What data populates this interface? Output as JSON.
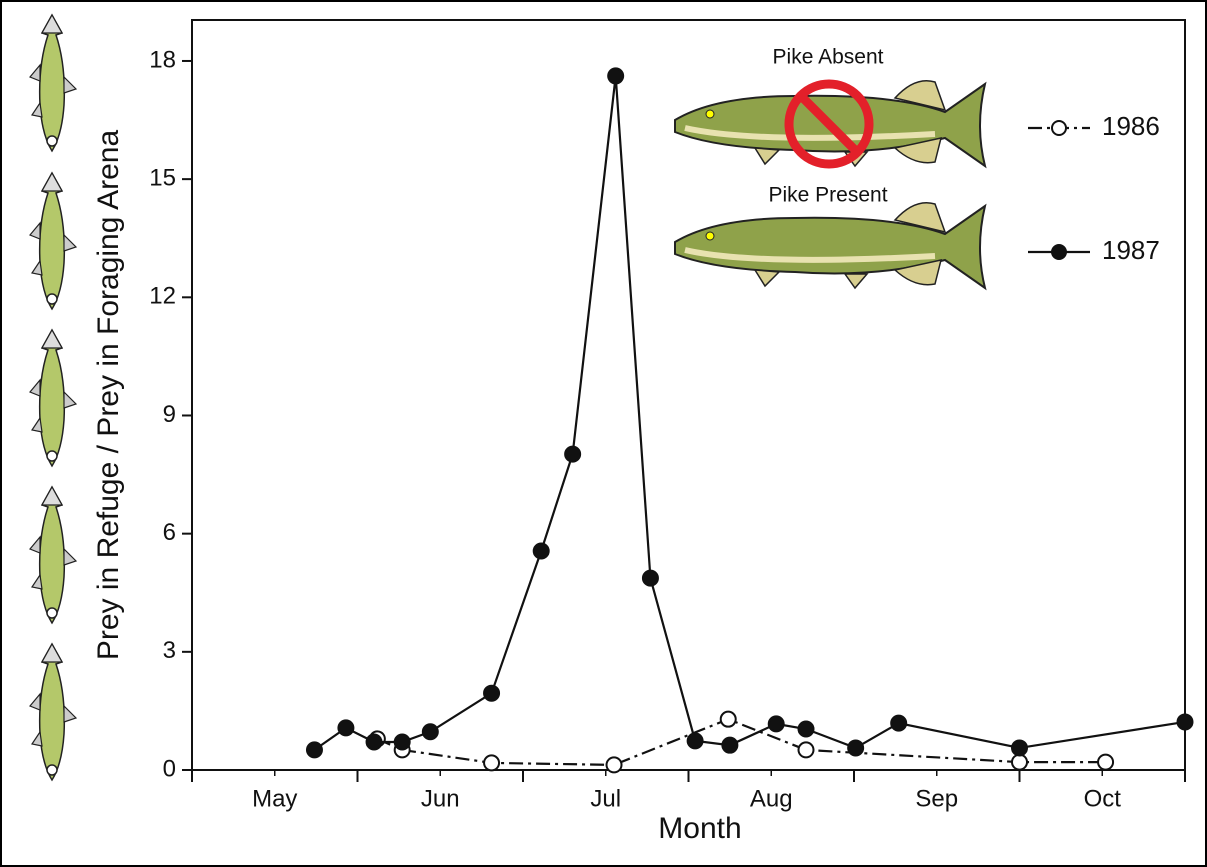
{
  "chart_data": {
    "type": "line",
    "x_label": "Month",
    "y_label": "Prey in Refuge / Prey in Foraging Arena",
    "legend_notes": [
      "Pike Absent",
      "Pike Present"
    ],
    "xlim": [
      0,
      6
    ],
    "xticks": [
      {
        "value": 0.5,
        "label": "May"
      },
      {
        "value": 1.5,
        "label": "Jun"
      },
      {
        "value": 2.5,
        "label": "Jul"
      },
      {
        "value": 3.5,
        "label": "Aug"
      },
      {
        "value": 4.5,
        "label": "Sep"
      },
      {
        "value": 5.5,
        "label": "Oct"
      }
    ],
    "ylim": [
      0,
      19.04
    ],
    "yticks": [
      0,
      3,
      6,
      9,
      12,
      15,
      18
    ],
    "series": [
      {
        "name": "1986",
        "color": "#111111",
        "line_style": "dashdot",
        "marker_fill": "#ffffff",
        "x": [
          1.12,
          1.27,
          1.81,
          2.55,
          3.24,
          3.71,
          5.0,
          5.52
        ],
        "values": [
          0.79,
          0.51,
          0.18,
          0.13,
          1.29,
          0.51,
          0.2,
          0.2
        ]
      },
      {
        "name": "1987",
        "color": "#111111",
        "line_style": "solid",
        "marker_fill": "#111111",
        "x": [
          0.74,
          0.93,
          1.1,
          1.27,
          1.44,
          1.81,
          2.11,
          2.3,
          2.56,
          2.77,
          3.04,
          3.25,
          3.53,
          3.71,
          4.01,
          4.27,
          5.0,
          6.0
        ],
        "values": [
          0.51,
          1.07,
          0.71,
          0.71,
          0.97,
          1.95,
          5.56,
          8.02,
          17.62,
          4.87,
          0.74,
          0.63,
          1.17,
          1.04,
          0.56,
          1.19,
          0.56,
          1.22
        ]
      }
    ]
  }
}
